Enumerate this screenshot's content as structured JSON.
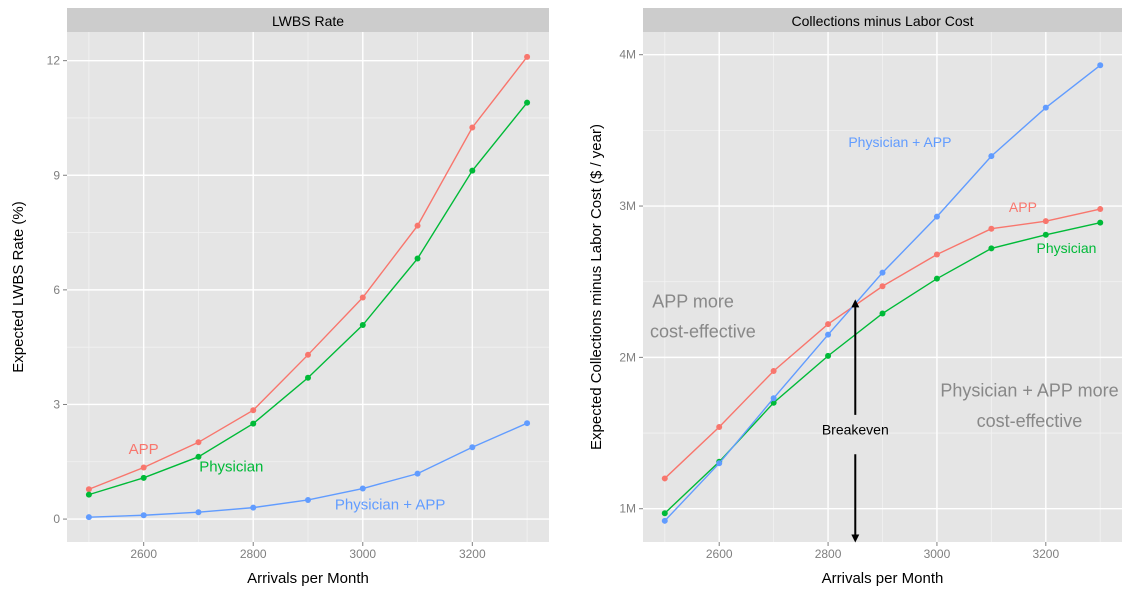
{
  "chart_data": [
    {
      "type": "line",
      "title": "LWBS Rate",
      "xlabel": "Arrivals per Month",
      "ylabel": "Expected LWBS Rate (%)",
      "xlim": [
        2460,
        3340
      ],
      "ylim": [
        -0.6,
        12.75
      ],
      "xticks": [
        2600,
        2800,
        3000,
        3200
      ],
      "yticks": [
        0,
        3,
        6,
        9,
        12
      ],
      "xtick_labels": [
        "2600",
        "2800",
        "3000",
        "3200"
      ],
      "ytick_labels": [
        "0",
        "3",
        "6",
        "9",
        "12"
      ],
      "grid": true,
      "x": [
        2500,
        2600,
        2700,
        2800,
        2900,
        3000,
        3100,
        3200,
        3300
      ],
      "series": [
        {
          "name": "APP",
          "color": "#F8766D",
          "values": [
            0.78,
            1.35,
            2.01,
            2.85,
            4.3,
            5.8,
            7.68,
            10.25,
            12.1
          ]
        },
        {
          "name": "Physician",
          "color": "#00BA38",
          "values": [
            0.64,
            1.08,
            1.63,
            2.5,
            3.7,
            5.08,
            6.82,
            9.12,
            10.9
          ]
        },
        {
          "name": "Physician + APP",
          "color": "#619CFF",
          "values": [
            0.05,
            0.1,
            0.18,
            0.3,
            0.5,
            0.8,
            1.19,
            1.88,
            2.51
          ]
        }
      ],
      "annotations": [
        {
          "text": "APP",
          "x": 2600,
          "y": 1.7,
          "color": "#F8766D"
        },
        {
          "text": "Physician",
          "x": 2760,
          "y": 1.25,
          "color": "#00BA38"
        },
        {
          "text": "Physician + APP",
          "x": 3050,
          "y": 0.25,
          "color": "#619CFF"
        }
      ]
    },
    {
      "type": "line",
      "title": "Collections minus Labor Cost",
      "xlabel": "Arrivals per Month",
      "ylabel": "Expected Collections minus Labor Cost ($ / year)",
      "xlim": [
        2460,
        3340
      ],
      "ylim": [
        780000,
        4150000
      ],
      "xticks": [
        2600,
        2800,
        3000,
        3200
      ],
      "yticks": [
        1000000,
        2000000,
        3000000,
        4000000
      ],
      "xtick_labels": [
        "2600",
        "2800",
        "3000",
        "3200"
      ],
      "ytick_labels": [
        "1M",
        "2M",
        "3M",
        "4M"
      ],
      "grid": true,
      "x": [
        2500,
        2600,
        2700,
        2800,
        2900,
        3000,
        3100,
        3200,
        3300
      ],
      "series": [
        {
          "name": "APP",
          "color": "#F8766D",
          "values": [
            1200000,
            1540000,
            1910000,
            2220000,
            2470000,
            2680000,
            2850000,
            2900000,
            2980000
          ]
        },
        {
          "name": "Physician",
          "color": "#00BA38",
          "values": [
            970000,
            1310000,
            1700000,
            2010000,
            2290000,
            2520000,
            2720000,
            2810000,
            2890000
          ]
        },
        {
          "name": "Physician + APP",
          "color": "#619CFF",
          "values": [
            920000,
            1300000,
            1730000,
            2150000,
            2560000,
            2930000,
            3330000,
            3650000,
            3930000
          ]
        }
      ],
      "annotations": [
        {
          "text": "Physician + APP",
          "x": 2932,
          "y": 3390000,
          "color": "#619CFF",
          "size": "sm"
        },
        {
          "text": "APP",
          "x": 3158,
          "y": 2960000,
          "color": "#F8766D",
          "size": "sm"
        },
        {
          "text": "Physician",
          "x": 3238,
          "y": 2690000,
          "color": "#00BA38",
          "size": "sm"
        },
        {
          "text": "APP more",
          "x": 2552,
          "y": 2330000,
          "color": "#888888",
          "size": "lg"
        },
        {
          "text": "cost-effective",
          "x": 2570,
          "y": 2130000,
          "color": "#888888",
          "size": "lg"
        },
        {
          "text": "Physician + APP more",
          "x": 3170,
          "y": 1740000,
          "color": "#888888",
          "size": "lg"
        },
        {
          "text": "cost-effective",
          "x": 3170,
          "y": 1540000,
          "color": "#888888",
          "size": "lg"
        },
        {
          "text": "Breakeven",
          "x": 2850,
          "y": 1490000,
          "color": "#000000",
          "size": "sm"
        }
      ],
      "breakeven_arrow": {
        "x": 2850,
        "y_top": 2370000,
        "y_mid_top": 1620000,
        "y_mid_bottom": 1360000,
        "y_bottom": 790000
      }
    }
  ]
}
